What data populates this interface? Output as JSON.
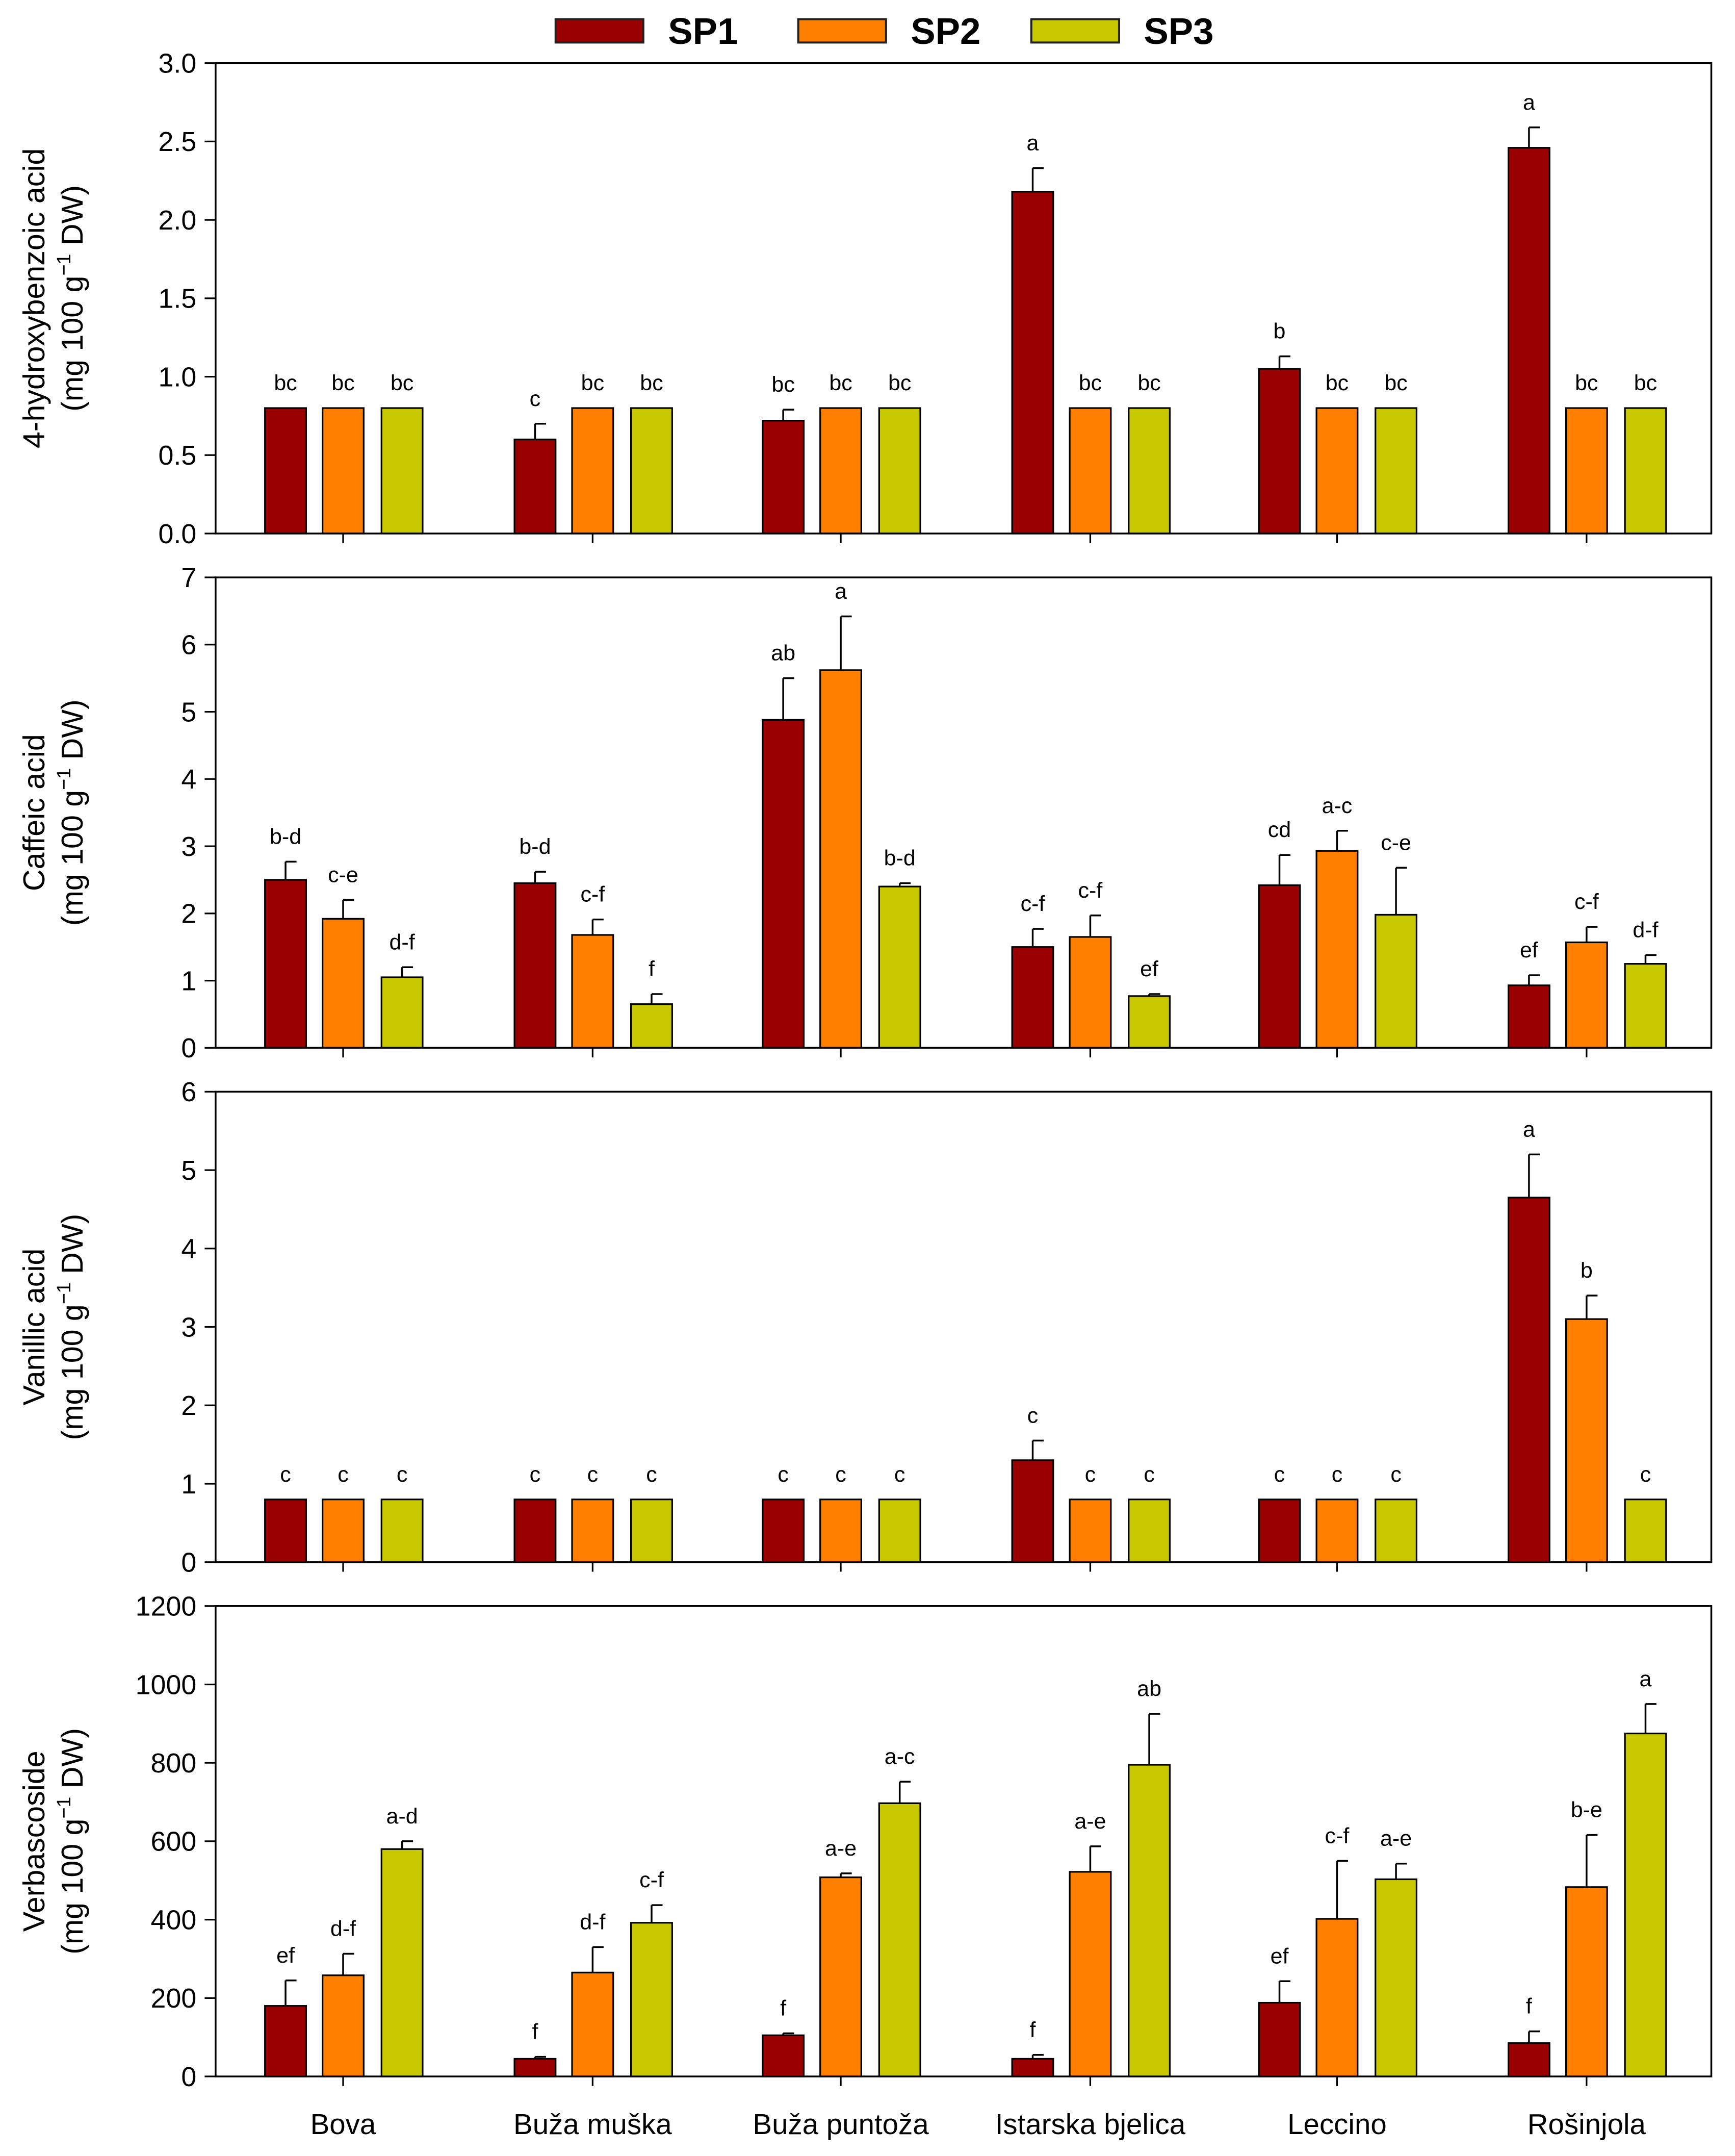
{
  "colors": {
    "SP1": "#990000",
    "SP2": "#ff8000",
    "SP3": "#c8c800"
  },
  "chart_data": {
    "type": "bar",
    "legend": {
      "position": "top-center",
      "entries": [
        "SP1",
        "SP2",
        "SP3"
      ]
    },
    "categories": [
      "Bova",
      "Buža muška",
      "Buža puntoža",
      "Istarska bjelica",
      "Leccino",
      "Rošinjola"
    ],
    "panels": [
      {
        "ylabel": [
          "4-hydroxybenzoic acid",
          "(mg 100 g",
          "−1",
          " DW)"
        ],
        "ylim": [
          0,
          3
        ],
        "ticks": [
          "0.0",
          "0.5",
          "1.0",
          "1.5",
          "2.0",
          "2.5",
          "3.0"
        ],
        "series": [
          {
            "name": "SP1",
            "values": [
              0.8,
              0.6,
              0.72,
              2.18,
              1.05,
              2.46
            ],
            "errors": [
              0,
              0.1,
              0.07,
              0.15,
              0.08,
              0.13
            ],
            "letters": [
              "bc",
              "c",
              "bc",
              "a",
              "b",
              "a"
            ]
          },
          {
            "name": "SP2",
            "values": [
              0.8,
              0.8,
              0.8,
              0.8,
              0.8,
              0.8
            ],
            "errors": [
              0,
              0,
              0,
              0,
              0,
              0
            ],
            "letters": [
              "bc",
              "bc",
              "bc",
              "bc",
              "bc",
              "bc"
            ]
          },
          {
            "name": "SP3",
            "values": [
              0.8,
              0.8,
              0.8,
              0.8,
              0.8,
              0.8
            ],
            "errors": [
              0,
              0,
              0,
              0,
              0,
              0
            ],
            "letters": [
              "bc",
              "bc",
              "bc",
              "bc",
              "bc",
              "bc"
            ]
          }
        ]
      },
      {
        "ylabel": [
          "Caffeic acid",
          "(mg 100 g",
          "−1",
          " DW)"
        ],
        "ylim": [
          0,
          7
        ],
        "ticks": [
          "0",
          "1",
          "2",
          "3",
          "4",
          "5",
          "6",
          "7"
        ],
        "series": [
          {
            "name": "SP1",
            "values": [
              2.5,
              2.45,
              4.88,
              1.5,
              2.42,
              0.93
            ],
            "errors": [
              0.27,
              0.17,
              0.62,
              0.27,
              0.45,
              0.15
            ],
            "letters": [
              "b-d",
              "b-d",
              "ab",
              "c-f",
              "cd",
              "ef"
            ]
          },
          {
            "name": "SP2",
            "values": [
              1.92,
              1.68,
              5.62,
              1.65,
              2.93,
              1.57
            ],
            "errors": [
              0.28,
              0.23,
              0.8,
              0.32,
              0.3,
              0.23
            ],
            "letters": [
              "c-e",
              "c-f",
              "a",
              "c-f",
              "a-c",
              "c-f"
            ]
          },
          {
            "name": "SP3",
            "values": [
              1.05,
              0.65,
              2.4,
              0.77,
              1.98,
              1.25
            ],
            "errors": [
              0.15,
              0.15,
              0.05,
              0.03,
              0.7,
              0.13
            ],
            "letters": [
              "d-f",
              "f",
              "b-d",
              "ef",
              "c-e",
              "d-f"
            ]
          }
        ]
      },
      {
        "ylabel": [
          "Vanillic acid",
          "(mg 100 g",
          "−1",
          " DW)"
        ],
        "ylim": [
          0,
          6
        ],
        "ticks": [
          "0",
          "1",
          "2",
          "3",
          "4",
          "5",
          "6"
        ],
        "series": [
          {
            "name": "SP1",
            "values": [
              0.8,
              0.8,
              0.8,
              1.3,
              0.8,
              4.65
            ],
            "errors": [
              0,
              0,
              0,
              0.25,
              0,
              0.55
            ],
            "letters": [
              "c",
              "c",
              "c",
              "c",
              "c",
              "a"
            ]
          },
          {
            "name": "SP2",
            "values": [
              0.8,
              0.8,
              0.8,
              0.8,
              0.8,
              3.1
            ],
            "errors": [
              0,
              0,
              0,
              0,
              0,
              0.3
            ],
            "letters": [
              "c",
              "c",
              "c",
              "c",
              "c",
              "b"
            ]
          },
          {
            "name": "SP3",
            "values": [
              0.8,
              0.8,
              0.8,
              0.8,
              0.8,
              0.8
            ],
            "errors": [
              0,
              0,
              0,
              0,
              0,
              0
            ],
            "letters": [
              "c",
              "c",
              "c",
              "c",
              "c",
              "c"
            ]
          }
        ]
      },
      {
        "ylabel": [
          "Verbascoside",
          "(mg 100 g",
          "−1",
          " DW)"
        ],
        "ylim": [
          0,
          1200
        ],
        "ticks": [
          "0",
          "200",
          "400",
          "600",
          "800",
          "1000",
          "1200"
        ],
        "series": [
          {
            "name": "SP1",
            "values": [
              180,
              45,
              105,
              45,
              188,
              85
            ],
            "errors": [
              65,
              5,
              5,
              10,
              55,
              30
            ],
            "letters": [
              "ef",
              "f",
              "f",
              "f",
              "ef",
              "f"
            ]
          },
          {
            "name": "SP2",
            "values": [
              258,
              265,
              508,
              522,
              402,
              483
            ],
            "errors": [
              55,
              65,
              10,
              65,
              148,
              133
            ],
            "letters": [
              "d-f",
              "d-f",
              "a-e",
              "a-e",
              "c-f",
              "b-e"
            ]
          },
          {
            "name": "SP3",
            "values": [
              580,
              392,
              697,
              795,
              503,
              875
            ],
            "errors": [
              20,
              45,
              55,
              130,
              40,
              75
            ],
            "letters": [
              "a-d",
              "c-f",
              "a-c",
              "ab",
              "a-e",
              "a"
            ]
          }
        ]
      }
    ]
  }
}
